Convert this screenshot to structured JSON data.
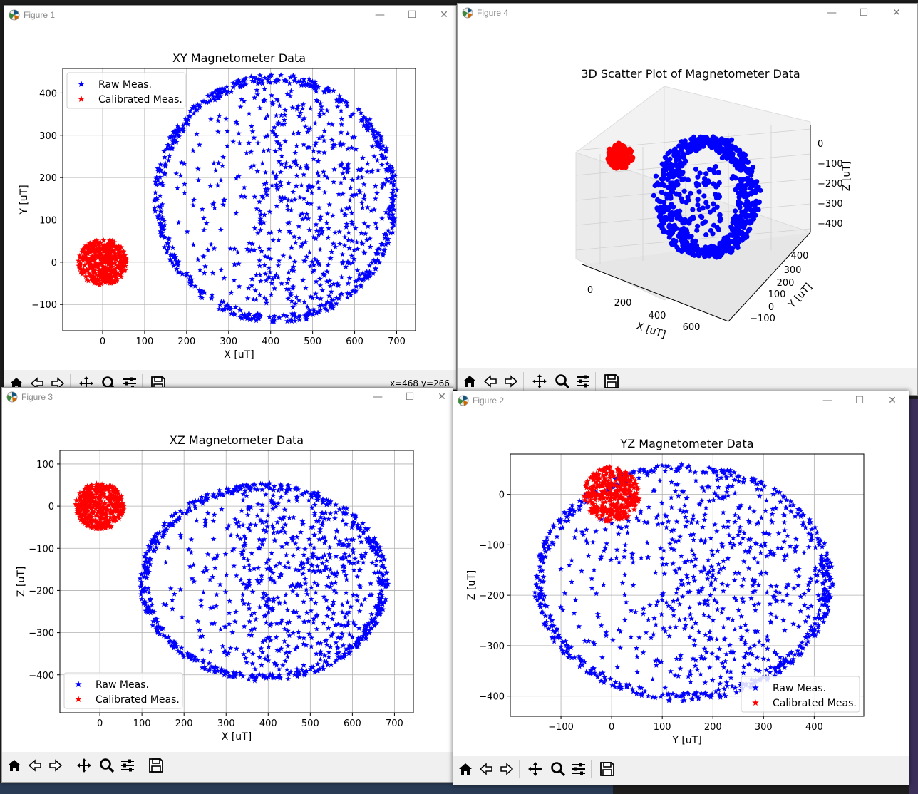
{
  "windows": [
    {
      "id": "fig1",
      "title": "Figure 1",
      "coords": "x=468  y=266",
      "plot": {
        "title": "XY Magnetometer Data",
        "xlabel": "X [uT]",
        "ylabel": "Y [uT]"
      }
    },
    {
      "id": "fig4",
      "title": "Figure 4",
      "plot": {
        "title": "3D Scatter Plot of Magnetometer Data",
        "xlabel": "X [uT]",
        "ylabel": "Y [uT]",
        "zlabel": "Z [uT]"
      }
    },
    {
      "id": "fig3",
      "title": "Figure 3",
      "plot": {
        "title": "XZ Magnetometer Data",
        "xlabel": "X [uT]",
        "ylabel": "Z [uT]"
      }
    },
    {
      "id": "fig2",
      "title": "Figure 2",
      "plot": {
        "title": "YZ Magnetometer Data",
        "xlabel": "Y [uT]",
        "ylabel": "Z [uT]"
      }
    }
  ],
  "legend": {
    "raw": "Raw Meas.",
    "calibrated": "Calibrated Meas."
  },
  "colors": {
    "raw": "#0000ff",
    "calibrated": "#ff0000",
    "grid": "#b0b0b0",
    "toolbar": "#f0f0f0"
  },
  "toolbar_icons": [
    "home-icon",
    "back-arrow-icon",
    "forward-arrow-icon",
    "pan-icon",
    "zoom-icon",
    "configure-subplots-icon",
    "save-icon"
  ],
  "chart_data": [
    {
      "type": "scatter",
      "title": "XY Magnetometer Data",
      "xlabel": "X [uT]",
      "ylabel": "Y [uT]",
      "xlim": [
        -95,
        745
      ],
      "ylim": [
        -162,
        458
      ],
      "xticks": [
        0,
        100,
        200,
        300,
        400,
        500,
        600,
        700
      ],
      "yticks": [
        -100,
        0,
        100,
        200,
        300,
        400
      ],
      "grid": true,
      "legend": "upper-left",
      "series": [
        {
          "name": "Raw Meas.",
          "shape": "ellipse",
          "center": [
            412,
            150
          ],
          "radius": [
            290,
            295
          ]
        },
        {
          "name": "Calibrated Meas.",
          "shape": "blob",
          "center": [
            0,
            0
          ],
          "radius": [
            58,
            55
          ]
        }
      ]
    },
    {
      "type": "scatter",
      "title": "XZ Magnetometer Data",
      "xlabel": "X [uT]",
      "ylabel": "Z [uT]",
      "xlim": [
        -95,
        745
      ],
      "ylim": [
        -490,
        132
      ],
      "xticks": [
        0,
        100,
        200,
        300,
        400,
        500,
        600,
        700
      ],
      "yticks": [
        -400,
        -300,
        -200,
        -100,
        0,
        100
      ],
      "grid": true,
      "legend": "lower-left",
      "series": [
        {
          "name": "Raw Meas.",
          "shape": "ellipse",
          "center": [
            390,
            -180
          ],
          "radius": [
            295,
            235
          ]
        },
        {
          "name": "Calibrated Meas.",
          "shape": "blob",
          "center": [
            0,
            0
          ],
          "radius": [
            58,
            55
          ]
        }
      ]
    },
    {
      "type": "scatter",
      "title": "YZ Magnetometer Data",
      "xlabel": "Y [uT]",
      "ylabel": "Z [uT]",
      "xlim": [
        -200,
        498
      ],
      "ylim": [
        -440,
        80
      ],
      "xticks": [
        -100,
        0,
        100,
        200,
        300,
        400
      ],
      "yticks": [
        -400,
        -300,
        -200,
        -100,
        0
      ],
      "grid": true,
      "legend": "lower-right",
      "series": [
        {
          "name": "Raw Meas.",
          "shape": "ellipse",
          "center": [
            142,
            -175
          ],
          "radius": [
            295,
            235
          ]
        },
        {
          "name": "Calibrated Meas.",
          "shape": "blob",
          "center": [
            0,
            0
          ],
          "radius": [
            55,
            55
          ]
        }
      ]
    },
    {
      "type": "scatter",
      "title": "3D Scatter Plot of Magnetometer Data",
      "xlabel": "X [uT]",
      "ylabel": "Y [uT]",
      "zlabel": "Z [uT]",
      "xticks": [
        0,
        200,
        400,
        600
      ],
      "yticks": [
        -100,
        0,
        100,
        200,
        300,
        400
      ],
      "zticks": [
        0,
        -100,
        -200,
        -300,
        -400
      ],
      "grid": true
    }
  ]
}
